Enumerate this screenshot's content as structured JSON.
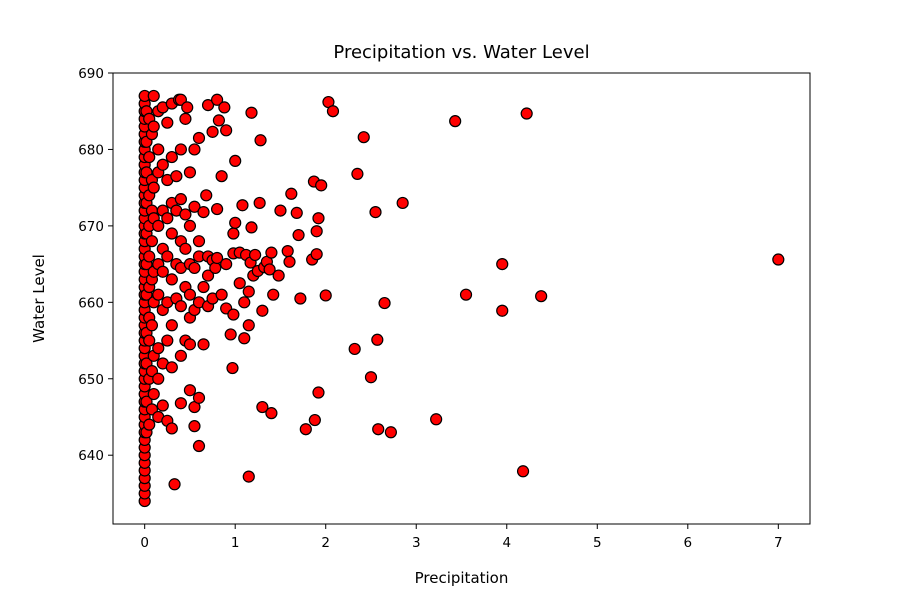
{
  "chart_data": {
    "type": "scatter",
    "title": "Precipitation vs. Water Level",
    "xlabel": "Precipitation",
    "ylabel": "Water Level",
    "xlim": [
      -0.35,
      7.35
    ],
    "ylim": [
      631,
      690
    ],
    "xticks": [
      0,
      1,
      2,
      3,
      4,
      5,
      6,
      7
    ],
    "yticks": [
      640,
      650,
      660,
      670,
      680,
      690
    ],
    "grid": false,
    "legend": "none",
    "marker_fill": "#ff0000",
    "marker_edge": "#000000",
    "series": [
      {
        "points": [
          [
            0,
            634
          ],
          [
            0,
            635
          ],
          [
            0,
            636
          ],
          [
            0,
            637
          ],
          [
            0,
            638
          ],
          [
            0,
            639
          ],
          [
            0,
            640
          ],
          [
            0,
            641
          ],
          [
            0,
            642
          ],
          [
            0,
            643
          ],
          [
            0,
            644
          ],
          [
            0,
            645
          ],
          [
            0,
            646
          ],
          [
            0,
            647
          ],
          [
            0,
            648
          ],
          [
            0,
            649
          ],
          [
            0,
            650
          ],
          [
            0,
            651
          ],
          [
            0,
            652
          ],
          [
            0,
            653
          ],
          [
            0,
            654
          ],
          [
            0,
            655
          ],
          [
            0,
            656
          ],
          [
            0,
            657
          ],
          [
            0,
            658
          ],
          [
            0,
            659
          ],
          [
            0,
            660
          ],
          [
            0,
            661
          ],
          [
            0,
            662
          ],
          [
            0,
            663
          ],
          [
            0,
            664
          ],
          [
            0,
            665
          ],
          [
            0,
            666
          ],
          [
            0,
            667
          ],
          [
            0,
            668
          ],
          [
            0,
            669
          ],
          [
            0,
            670
          ],
          [
            0,
            671
          ],
          [
            0,
            672
          ],
          [
            0,
            673
          ],
          [
            0,
            674
          ],
          [
            0,
            675
          ],
          [
            0,
            676
          ],
          [
            0,
            677
          ],
          [
            0,
            678
          ],
          [
            0,
            679
          ],
          [
            0,
            680
          ],
          [
            0,
            681
          ],
          [
            0,
            682
          ],
          [
            0,
            683
          ],
          [
            0,
            684
          ],
          [
            0,
            685
          ],
          [
            0,
            686
          ],
          [
            0,
            687
          ],
          [
            0.02,
            643
          ],
          [
            0.02,
            647
          ],
          [
            0.02,
            652
          ],
          [
            0.02,
            656
          ],
          [
            0.02,
            661
          ],
          [
            0.02,
            665
          ],
          [
            0.02,
            669
          ],
          [
            0.02,
            673
          ],
          [
            0.02,
            677
          ],
          [
            0.02,
            681
          ],
          [
            0.02,
            685
          ],
          [
            0.05,
            644
          ],
          [
            0.05,
            650
          ],
          [
            0.05,
            655
          ],
          [
            0.05,
            658
          ],
          [
            0.05,
            662
          ],
          [
            0.05,
            666
          ],
          [
            0.05,
            670
          ],
          [
            0.05,
            674
          ],
          [
            0.05,
            679
          ],
          [
            0.05,
            684
          ],
          [
            0.08,
            646
          ],
          [
            0.08,
            651
          ],
          [
            0.08,
            657
          ],
          [
            0.08,
            663
          ],
          [
            0.08,
            668
          ],
          [
            0.08,
            672
          ],
          [
            0.08,
            676
          ],
          [
            0.08,
            682
          ],
          [
            0.1,
            648
          ],
          [
            0.1,
            653
          ],
          [
            0.1,
            660
          ],
          [
            0.1,
            664
          ],
          [
            0.1,
            671
          ],
          [
            0.1,
            675
          ],
          [
            0.1,
            683
          ],
          [
            0.1,
            687
          ],
          [
            0.15,
            645
          ],
          [
            0.15,
            650
          ],
          [
            0.15,
            654
          ],
          [
            0.15,
            661
          ],
          [
            0.15,
            665
          ],
          [
            0.15,
            670
          ],
          [
            0.15,
            677
          ],
          [
            0.15,
            680
          ],
          [
            0.15,
            685
          ],
          [
            0.2,
            646.5
          ],
          [
            0.2,
            652
          ],
          [
            0.2,
            659
          ],
          [
            0.2,
            664
          ],
          [
            0.2,
            667
          ],
          [
            0.2,
            672
          ],
          [
            0.2,
            678
          ],
          [
            0.2,
            685.5
          ],
          [
            0.25,
            644.5
          ],
          [
            0.25,
            655
          ],
          [
            0.25,
            660
          ],
          [
            0.25,
            666
          ],
          [
            0.25,
            671
          ],
          [
            0.25,
            676
          ],
          [
            0.25,
            683.5
          ],
          [
            0.3,
            643.5
          ],
          [
            0.3,
            651.5
          ],
          [
            0.3,
            657
          ],
          [
            0.3,
            663
          ],
          [
            0.3,
            669
          ],
          [
            0.3,
            673
          ],
          [
            0.3,
            679
          ],
          [
            0.3,
            686
          ],
          [
            0.33,
            636.2
          ],
          [
            0.35,
            660.5
          ],
          [
            0.35,
            665
          ],
          [
            0.35,
            672
          ],
          [
            0.35,
            676.5
          ],
          [
            0.38,
            686.5
          ],
          [
            0.4,
            646.8
          ],
          [
            0.4,
            653
          ],
          [
            0.4,
            659.5
          ],
          [
            0.4,
            664.5
          ],
          [
            0.4,
            668
          ],
          [
            0.4,
            673.5
          ],
          [
            0.4,
            680
          ],
          [
            0.4,
            686.5
          ],
          [
            0.45,
            655
          ],
          [
            0.45,
            662
          ],
          [
            0.45,
            667
          ],
          [
            0.45,
            671.5
          ],
          [
            0.45,
            684
          ],
          [
            0.47,
            685.5
          ],
          [
            0.5,
            648.5
          ],
          [
            0.5,
            654.5
          ],
          [
            0.5,
            658
          ],
          [
            0.5,
            661
          ],
          [
            0.5,
            665
          ],
          [
            0.5,
            670
          ],
          [
            0.5,
            677
          ],
          [
            0.55,
            646.3
          ],
          [
            0.55,
            643.8
          ],
          [
            0.55,
            664.5
          ],
          [
            0.55,
            659
          ],
          [
            0.55,
            672.5
          ],
          [
            0.55,
            680
          ],
          [
            0.6,
            641.2
          ],
          [
            0.6,
            647.5
          ],
          [
            0.6,
            660
          ],
          [
            0.6,
            666
          ],
          [
            0.6,
            668
          ],
          [
            0.6,
            681.5
          ],
          [
            0.65,
            654.5
          ],
          [
            0.65,
            662
          ],
          [
            0.65,
            671.8
          ],
          [
            0.68,
            674
          ],
          [
            0.7,
            659.5
          ],
          [
            0.7,
            663.5
          ],
          [
            0.7,
            666
          ],
          [
            0.7,
            685.8
          ],
          [
            0.75,
            660.5
          ],
          [
            0.75,
            665.5
          ],
          [
            0.75,
            682.3
          ],
          [
            0.78,
            664.5
          ],
          [
            0.8,
            665.8
          ],
          [
            0.8,
            672.2
          ],
          [
            0.82,
            683.8
          ],
          [
            0.8,
            686.5
          ],
          [
            0.85,
            661
          ],
          [
            0.85,
            676.5
          ],
          [
            0.88,
            685.5
          ],
          [
            0.9,
            659.2
          ],
          [
            0.9,
            665
          ],
          [
            0.9,
            682.5
          ],
          [
            0.95,
            655.8
          ],
          [
            0.97,
            651.4
          ],
          [
            0.98,
            658.4
          ],
          [
            0.98,
            666.4
          ],
          [
            0.98,
            669
          ],
          [
            1.0,
            670.4
          ],
          [
            1.0,
            678.5
          ],
          [
            1.05,
            662.5
          ],
          [
            1.05,
            666.5
          ],
          [
            1.08,
            672.7
          ],
          [
            1.1,
            655.3
          ],
          [
            1.1,
            660
          ],
          [
            1.12,
            666.2
          ],
          [
            1.15,
            637.2
          ],
          [
            1.15,
            657
          ],
          [
            1.15,
            661.4
          ],
          [
            1.17,
            665.2
          ],
          [
            1.18,
            669.8
          ],
          [
            1.18,
            684.8
          ],
          [
            1.2,
            663.5
          ],
          [
            1.22,
            666.2
          ],
          [
            1.25,
            664.1
          ],
          [
            1.27,
            673
          ],
          [
            1.28,
            681.2
          ],
          [
            1.3,
            646.3
          ],
          [
            1.3,
            658.9
          ],
          [
            1.32,
            664.6
          ],
          [
            1.35,
            665.3
          ],
          [
            1.38,
            664.3
          ],
          [
            1.4,
            645.5
          ],
          [
            1.4,
            666.5
          ],
          [
            1.42,
            661
          ],
          [
            1.48,
            663.5
          ],
          [
            1.5,
            672
          ],
          [
            1.58,
            666.7
          ],
          [
            1.6,
            665.3
          ],
          [
            1.62,
            674.2
          ],
          [
            1.68,
            671.7
          ],
          [
            1.7,
            668.8
          ],
          [
            1.72,
            660.5
          ],
          [
            1.78,
            643.4
          ],
          [
            1.85,
            665.6
          ],
          [
            1.87,
            675.8
          ],
          [
            1.88,
            644.6
          ],
          [
            1.9,
            666.3
          ],
          [
            1.9,
            669.3
          ],
          [
            1.92,
            648.2
          ],
          [
            1.92,
            671
          ],
          [
            1.95,
            675.3
          ],
          [
            2.0,
            660.9
          ],
          [
            2.03,
            686.2
          ],
          [
            2.08,
            685
          ],
          [
            2.32,
            653.9
          ],
          [
            2.35,
            676.8
          ],
          [
            2.42,
            681.6
          ],
          [
            2.5,
            650.2
          ],
          [
            2.55,
            671.8
          ],
          [
            2.57,
            655.1
          ],
          [
            2.58,
            643.4
          ],
          [
            2.65,
            659.9
          ],
          [
            2.72,
            643
          ],
          [
            2.85,
            673
          ],
          [
            3.22,
            644.7
          ],
          [
            3.43,
            683.7
          ],
          [
            3.55,
            661
          ],
          [
            3.95,
            658.9
          ],
          [
            3.95,
            665
          ],
          [
            4.18,
            637.9
          ],
          [
            4.22,
            684.7
          ],
          [
            4.38,
            660.8
          ],
          [
            7.0,
            665.6
          ]
        ]
      }
    ]
  }
}
